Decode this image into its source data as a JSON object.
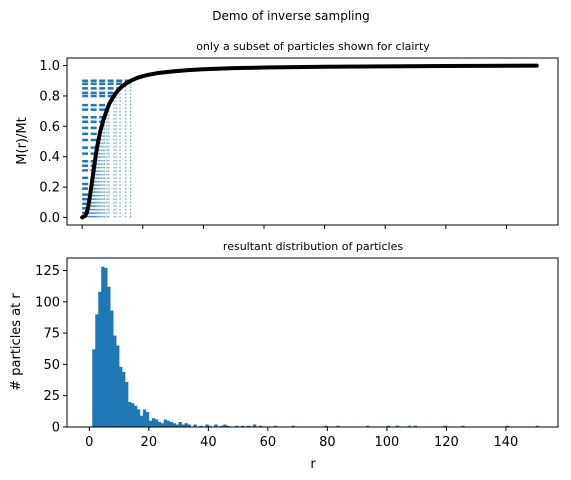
{
  "figure": {
    "suptitle": "Demo of inverse sampling"
  },
  "colors": {
    "accent": "#1f77b4",
    "curve": "#000000",
    "axes": "#000000",
    "background": "#ffffff"
  },
  "chart_data": [
    {
      "type": "line",
      "title": "only a subset of particles shown for clairty",
      "xlabel": "",
      "ylabel": "M(r)/Mt",
      "xlim": [
        -5,
        157
      ],
      "ylim": [
        -0.05,
        1.05
      ],
      "x_ticks": [
        0,
        20,
        40,
        60,
        80,
        100,
        120,
        140
      ],
      "x_tick_labels_visible": false,
      "y_ticks": [
        0.0,
        0.2,
        0.4,
        0.6,
        0.8,
        1.0
      ],
      "y_tick_labels": [
        "0.0",
        "0.2",
        "0.4",
        "0.6",
        "0.8",
        "1.0"
      ],
      "grid": false,
      "legend": "none",
      "series": [
        {
          "kind": "cumulative-curve",
          "x": [
            0,
            1,
            1.5,
            2,
            2.5,
            3,
            3.5,
            4,
            4.5,
            5,
            5.5,
            6,
            7,
            8,
            9,
            10,
            11,
            12,
            13,
            14,
            15,
            16,
            18,
            20,
            22,
            25,
            30,
            35,
            40,
            50,
            60,
            70,
            80,
            100,
            120,
            140,
            150
          ],
          "y": [
            0.0,
            0.01,
            0.03,
            0.07,
            0.13,
            0.2,
            0.27,
            0.34,
            0.41,
            0.47,
            0.52,
            0.57,
            0.64,
            0.7,
            0.75,
            0.785,
            0.815,
            0.84,
            0.86,
            0.875,
            0.888,
            0.9,
            0.918,
            0.93,
            0.94,
            0.951,
            0.962,
            0.97,
            0.976,
            0.983,
            0.987,
            0.99,
            0.992,
            0.995,
            0.997,
            0.999,
            1.0
          ]
        },
        {
          "kind": "sample-markers",
          "y_levels": [
            0.03,
            0.06,
            0.09,
            0.12,
            0.15,
            0.19,
            0.22,
            0.26,
            0.31,
            0.34,
            0.37,
            0.42,
            0.46,
            0.51,
            0.55,
            0.59,
            0.63,
            0.66,
            0.71,
            0.74,
            0.8,
            0.82,
            0.85,
            0.88,
            0.9
          ]
        }
      ]
    },
    {
      "type": "bar",
      "title": "resultant distribution of particles",
      "xlabel": "r",
      "ylabel": "# particles at r",
      "xlim": [
        -7.5,
        157.5
      ],
      "ylim": [
        0,
        135
      ],
      "x_ticks": [
        0,
        20,
        40,
        60,
        80,
        100,
        120,
        140
      ],
      "x_tick_labels": [
        "0",
        "20",
        "40",
        "60",
        "80",
        "100",
        "120",
        "140"
      ],
      "y_ticks": [
        0,
        25,
        50,
        75,
        100,
        125
      ],
      "y_tick_labels": [
        "0",
        "25",
        "50",
        "75",
        "100",
        "125"
      ],
      "grid": false,
      "legend": "none",
      "bin_width": 1,
      "bin_starts": [
        1,
        2,
        3,
        4,
        5,
        6,
        7,
        8,
        9,
        10,
        11,
        12,
        13,
        14,
        15,
        16,
        17,
        18,
        19,
        20,
        21,
        22,
        23,
        24,
        25,
        26,
        27,
        28,
        29,
        30,
        31,
        32,
        33,
        35,
        37,
        39,
        40,
        42,
        44,
        45,
        46,
        49,
        51,
        53,
        55,
        57,
        62,
        68,
        79,
        83,
        93,
        100,
        103,
        107,
        109,
        119,
        125,
        140,
        150
      ],
      "values": [
        62,
        90,
        108,
        128,
        127,
        112,
        93,
        73,
        65,
        48,
        44,
        36,
        20,
        19,
        17,
        14,
        9,
        14,
        12,
        5,
        7,
        6,
        4,
        3,
        6,
        5,
        4,
        3,
        2,
        4,
        2,
        3,
        2,
        2,
        1,
        2,
        1,
        2,
        1,
        2,
        1,
        1,
        1,
        1,
        2,
        1,
        1,
        1,
        1,
        1,
        1,
        1,
        1,
        1,
        1,
        1,
        1,
        1,
        1
      ]
    }
  ]
}
